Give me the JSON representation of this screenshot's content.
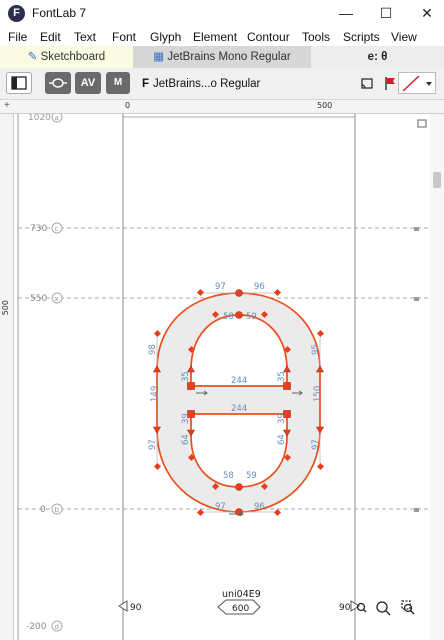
{
  "app": {
    "icon_letter": "F",
    "title": "FontLab 7"
  },
  "window_controls": {
    "minimize": "—",
    "maximize": "☐",
    "close": "✕"
  },
  "menu": [
    "File",
    "Edit",
    "Text",
    "Font",
    "Glyph",
    "Element",
    "Contour",
    "Tools",
    "Scripts",
    "View"
  ],
  "tabs": [
    {
      "label": "Sketchboard",
      "icon": "pencil-icon"
    },
    {
      "label": "JetBrains Mono Regular",
      "icon": "grid-icon"
    },
    {
      "label": "e: θ"
    }
  ],
  "toolbar": {
    "font_label": "JetBrains...o Regular",
    "font_prefix": "F",
    "kern_button": "AV",
    "metrics_button": "M"
  },
  "ruler": {
    "top_ticks": [
      "0",
      "500"
    ],
    "left_ticks": [
      "500"
    ]
  },
  "metrics_lines": [
    {
      "value": "1020",
      "tag": "a"
    },
    {
      "value": "730",
      "tag": "c"
    },
    {
      "value": "550",
      "tag": "x"
    },
    {
      "value": "0",
      "tag": "b"
    },
    {
      "value": "-200",
      "tag": "d"
    }
  ],
  "glyph": {
    "name": "uni04E9",
    "advance_width": "600",
    "left_sidebearing": "90",
    "right_sidebearing": "90",
    "colors": {
      "outline": "#e8501e",
      "fill": "#ebebeb",
      "node": "#e8401e",
      "measure": "#6a8db8"
    }
  },
  "measurements": {
    "outer_top_left": "97",
    "outer_top_right": "96",
    "inner_top_left": "58",
    "inner_top_right": "59",
    "outer_left_upper": "98",
    "outer_left_mid": "149",
    "outer_left_lower": "97",
    "outer_right_upper": "95",
    "outer_right_mid": "150",
    "outer_right_lower": "97",
    "inner_left_upper": "35",
    "inner_right_upper": "35",
    "inner_left_lower": "39",
    "inner_right_lower": "39",
    "inner_left_bottom": "64",
    "inner_right_bottom": "64",
    "bar_top": "244",
    "bar_bottom": "244",
    "inner_bottom_left": "58",
    "inner_bottom_right": "59",
    "outer_bottom_left": "97",
    "outer_bottom_right": "96"
  },
  "zoom_icons": [
    "zoom-in-icon",
    "zoom-icon",
    "zoom-fit-icon"
  ]
}
